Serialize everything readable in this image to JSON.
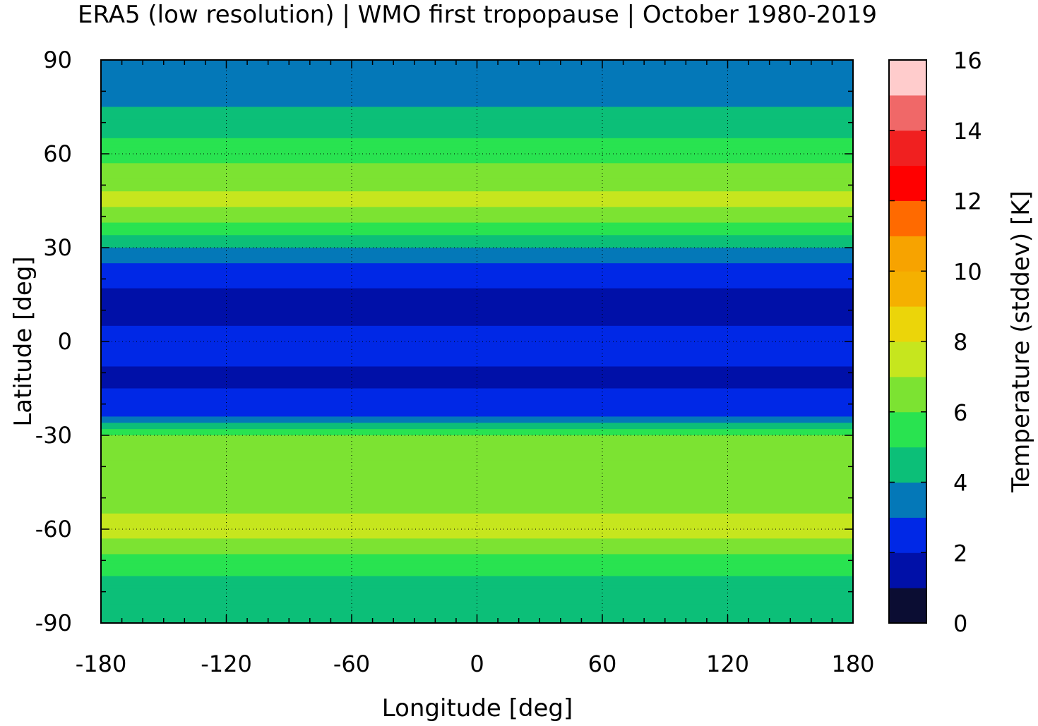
{
  "chart_data": {
    "type": "heatmap",
    "title": "ERA5 (low resolution) | WMO first tropopause | October 1980-2019",
    "xlabel": "Longitude [deg]",
    "ylabel": "Latitude [deg]",
    "colorbar_label": "Temperature (stddev) [K]",
    "xlim": [
      -180,
      180
    ],
    "ylim": [
      -90,
      90
    ],
    "x_ticks": [
      "-180",
      "-120",
      "-60",
      "0",
      "60",
      "120",
      "180"
    ],
    "y_ticks": [
      "90",
      "60",
      "30",
      "0",
      "-30",
      "-60",
      "-90"
    ],
    "colorbar_ticks": [
      "16",
      "14",
      "12",
      "10",
      "8",
      "6",
      "4",
      "2",
      "0"
    ],
    "colorbar_range": [
      0,
      16
    ],
    "colorbar_step": 1,
    "grid": true,
    "colors": [
      "#0b0d33",
      "#0010a8",
      "#0028e6",
      "#0478b8",
      "#0cbf78",
      "#29e350",
      "#7ce332",
      "#c6e61e",
      "#ebd50a",
      "#f5b000",
      "#f7a300",
      "#ff6a00",
      "#ff0000",
      "#f02020",
      "#f06868",
      "#ffcccc"
    ],
    "zonal_profile": {
      "lat": [
        90,
        85,
        80,
        75,
        70,
        65,
        60,
        55,
        50,
        45,
        40,
        35,
        30,
        25,
        20,
        15,
        10,
        5,
        0,
        -5,
        -10,
        -15,
        -20,
        -25,
        -30,
        -35,
        -40,
        -45,
        -50,
        -55,
        -60,
        -65,
        -70,
        -75,
        -80,
        -85,
        -90
      ],
      "stddev": [
        3.5,
        3.6,
        3.7,
        4.0,
        4.5,
        5.0,
        5.6,
        6.2,
        6.8,
        7.2,
        6.6,
        5.2,
        4.0,
        3.0,
        2.2,
        1.9,
        1.9,
        2.0,
        2.2,
        2.1,
        1.9,
        2.0,
        2.3,
        3.2,
        6.2,
        6.9,
        6.6,
        6.3,
        6.6,
        7.0,
        7.3,
        6.8,
        5.6,
        5.0,
        4.6,
        4.5,
        4.4
      ]
    }
  }
}
